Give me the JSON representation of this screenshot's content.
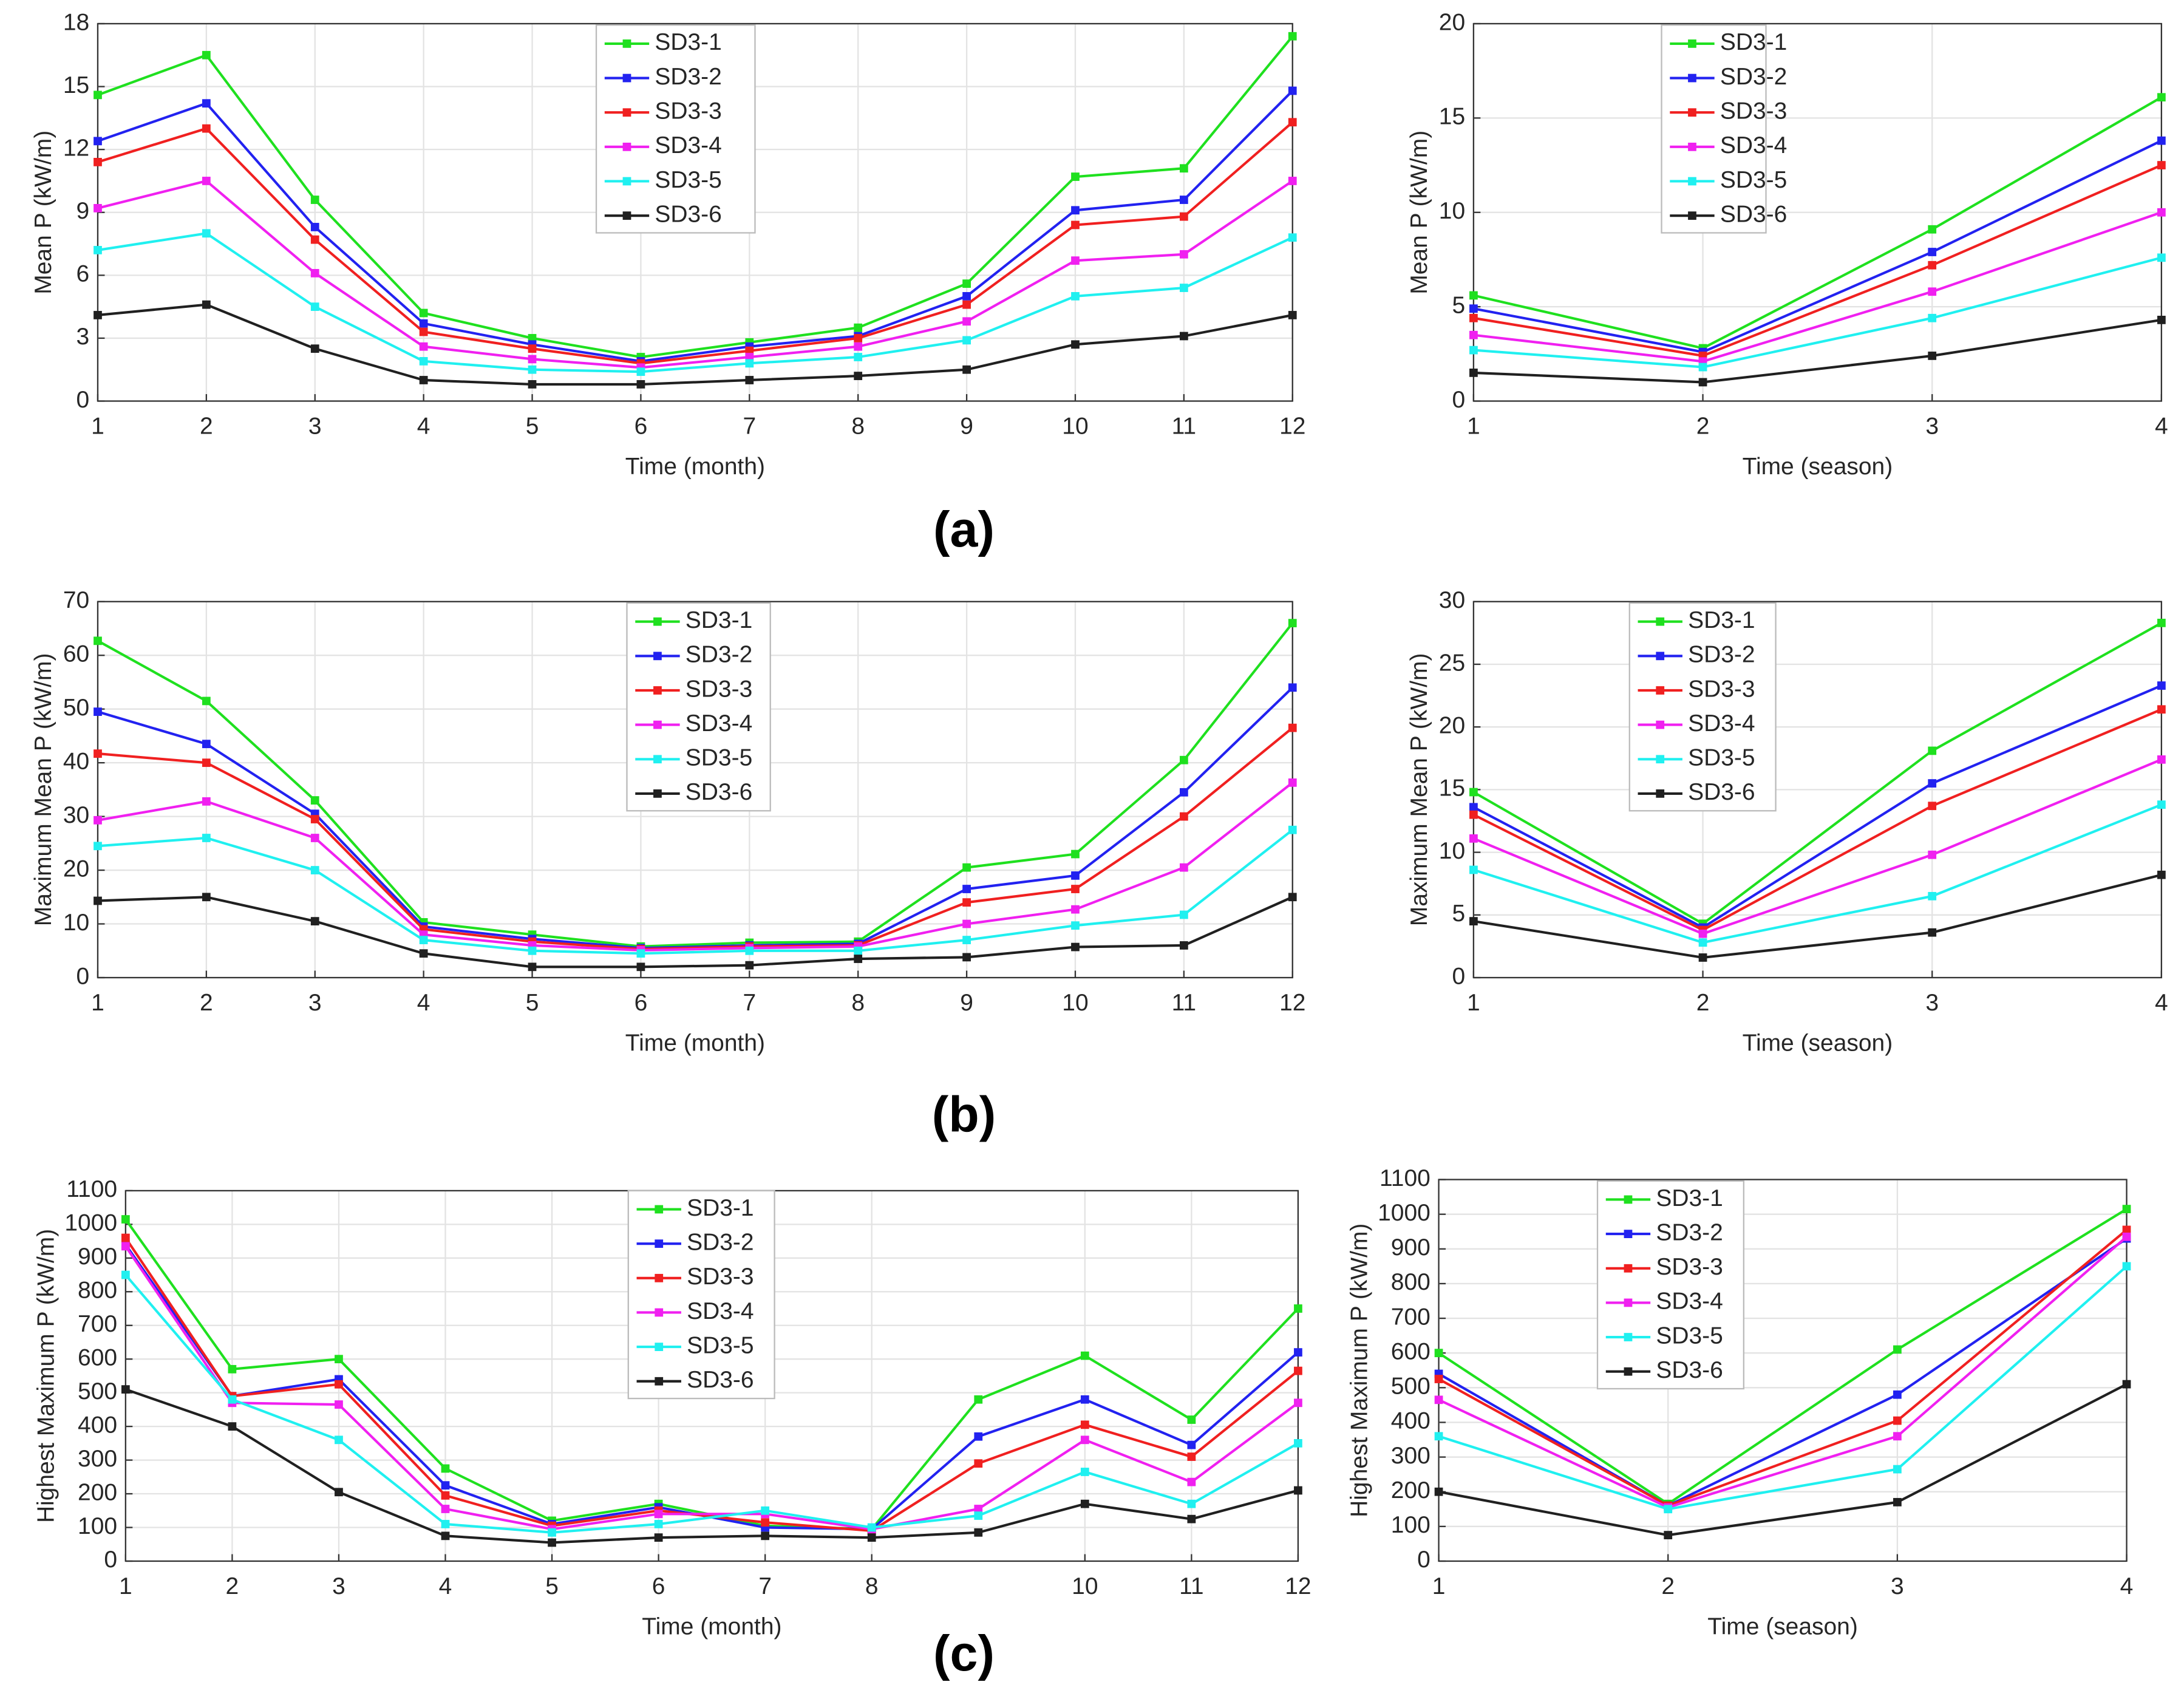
{
  "panel_labels": [
    "(a)",
    "(b)",
    "(c)"
  ],
  "chart_data": [
    {
      "type": "line",
      "xlabel": "Time (month)",
      "ylabel": "Mean P (kW/m)",
      "grid": true,
      "x": [
        1,
        2,
        3,
        4,
        5,
        6,
        7,
        8,
        9,
        10,
        11,
        12
      ],
      "xlim": [
        1,
        12
      ],
      "xticks": [
        1,
        2,
        3,
        4,
        5,
        6,
        7,
        8,
        9,
        10,
        11,
        12
      ],
      "ylim": [
        0,
        18
      ],
      "yticks": [
        0,
        3,
        6,
        9,
        12,
        15,
        18
      ],
      "series": [
        {
          "name": "SD3-1",
          "color": "#1fe01f",
          "values": [
            14.6,
            16.5,
            9.6,
            4.2,
            3.0,
            2.1,
            2.8,
            3.5,
            5.6,
            10.7,
            11.1,
            17.4
          ]
        },
        {
          "name": "SD3-2",
          "color": "#2222f0",
          "values": [
            12.4,
            14.2,
            8.3,
            3.7,
            2.7,
            1.9,
            2.6,
            3.1,
            5.0,
            9.1,
            9.6,
            14.8
          ]
        },
        {
          "name": "SD3-3",
          "color": "#f02020",
          "values": [
            11.4,
            13.0,
            7.7,
            3.3,
            2.5,
            1.8,
            2.4,
            3.0,
            4.6,
            8.4,
            8.8,
            13.3
          ]
        },
        {
          "name": "SD3-4",
          "color": "#f020f0",
          "values": [
            9.2,
            10.5,
            6.1,
            2.6,
            2.0,
            1.6,
            2.1,
            2.6,
            3.8,
            6.7,
            7.0,
            10.5
          ]
        },
        {
          "name": "SD3-5",
          "color": "#20f0f0",
          "values": [
            7.2,
            8.0,
            4.5,
            1.9,
            1.5,
            1.4,
            1.8,
            2.1,
            2.9,
            5.0,
            5.4,
            7.8
          ]
        },
        {
          "name": "SD3-6",
          "color": "#202020",
          "values": [
            4.1,
            4.6,
            2.5,
            1.0,
            0.8,
            0.8,
            1.0,
            1.2,
            1.5,
            2.7,
            3.1,
            4.1
          ]
        }
      ]
    },
    {
      "type": "line",
      "xlabel": "Time (season)",
      "ylabel": "Mean P (kW/m)",
      "grid": true,
      "x": [
        1,
        2,
        3,
        4
      ],
      "xlim": [
        1,
        4
      ],
      "xticks": [
        1,
        2,
        3,
        4
      ],
      "ylim": [
        0,
        20
      ],
      "yticks": [
        0,
        5,
        10,
        15,
        20
      ],
      "series": [
        {
          "name": "SD3-1",
          "color": "#1fe01f",
          "values": [
            5.6,
            2.8,
            9.1,
            16.1
          ]
        },
        {
          "name": "SD3-2",
          "color": "#2222f0",
          "values": [
            4.9,
            2.6,
            7.9,
            13.8
          ]
        },
        {
          "name": "SD3-3",
          "color": "#f02020",
          "values": [
            4.4,
            2.4,
            7.2,
            12.5
          ]
        },
        {
          "name": "SD3-4",
          "color": "#f020f0",
          "values": [
            3.5,
            2.1,
            5.8,
            10.0
          ]
        },
        {
          "name": "SD3-5",
          "color": "#20f0f0",
          "values": [
            2.7,
            1.8,
            4.4,
            7.6
          ]
        },
        {
          "name": "SD3-6",
          "color": "#202020",
          "values": [
            1.5,
            1.0,
            2.4,
            4.3
          ]
        }
      ]
    },
    {
      "type": "line",
      "xlabel": "Time (month)",
      "ylabel": "Maximum Mean P (kW/m)",
      "grid": true,
      "x": [
        1,
        2,
        3,
        4,
        5,
        6,
        7,
        8,
        9,
        10,
        11,
        12
      ],
      "xlim": [
        1,
        12
      ],
      "xticks": [
        1,
        2,
        3,
        4,
        5,
        6,
        7,
        8,
        9,
        10,
        11,
        12
      ],
      "ylim": [
        0,
        70
      ],
      "yticks": [
        0,
        10,
        20,
        30,
        40,
        50,
        60,
        70
      ],
      "series": [
        {
          "name": "SD3-1",
          "color": "#1fe01f",
          "values": [
            62.7,
            51.5,
            33,
            10.3,
            8,
            5.8,
            6.5,
            6.7,
            20.5,
            23,
            40.5,
            66
          ]
        },
        {
          "name": "SD3-2",
          "color": "#2222f0",
          "values": [
            49.5,
            43.5,
            30.5,
            9.5,
            7.2,
            5.5,
            6,
            6.3,
            16.5,
            19,
            34.5,
            54
          ]
        },
        {
          "name": "SD3-3",
          "color": "#f02020",
          "values": [
            41.7,
            40,
            29.5,
            9,
            6.7,
            5.3,
            5.8,
            6,
            14,
            16.5,
            30,
            46.5
          ]
        },
        {
          "name": "SD3-4",
          "color": "#f020f0",
          "values": [
            29.3,
            32.8,
            26,
            8,
            6,
            5.1,
            5.5,
            5.8,
            10,
            12.7,
            20.5,
            36.3
          ]
        },
        {
          "name": "SD3-5",
          "color": "#20f0f0",
          "values": [
            24.5,
            26,
            20,
            7,
            5,
            4.5,
            5,
            5,
            7,
            9.7,
            11.7,
            27.5
          ]
        },
        {
          "name": "SD3-6",
          "color": "#202020",
          "values": [
            14.3,
            15,
            10.5,
            4.5,
            2,
            2,
            2.3,
            3.5,
            3.8,
            5.7,
            6,
            15
          ]
        }
      ]
    },
    {
      "type": "line",
      "xlabel": "Time (season)",
      "ylabel": "Maximum Mean P (kW/m)",
      "grid": true,
      "x": [
        1,
        2,
        3,
        4
      ],
      "xlim": [
        1,
        4
      ],
      "xticks": [
        1,
        2,
        3,
        4
      ],
      "ylim": [
        0,
        30
      ],
      "yticks": [
        0,
        5,
        10,
        15,
        20,
        25,
        30
      ],
      "series": [
        {
          "name": "SD3-1",
          "color": "#1fe01f",
          "values": [
            14.8,
            4.3,
            18.1,
            28.3
          ]
        },
        {
          "name": "SD3-2",
          "color": "#2222f0",
          "values": [
            13.6,
            4.0,
            15.5,
            23.3
          ]
        },
        {
          "name": "SD3-3",
          "color": "#f02020",
          "values": [
            13.0,
            3.8,
            13.7,
            21.4
          ]
        },
        {
          "name": "SD3-4",
          "color": "#f020f0",
          "values": [
            11.1,
            3.5,
            9.8,
            17.4
          ]
        },
        {
          "name": "SD3-5",
          "color": "#20f0f0",
          "values": [
            8.6,
            2.8,
            6.5,
            13.8
          ]
        },
        {
          "name": "SD3-6",
          "color": "#202020",
          "values": [
            4.5,
            1.6,
            3.6,
            8.2
          ]
        }
      ]
    },
    {
      "type": "line",
      "xlabel": "Time (month)",
      "ylabel": "Highest Maximum P (kW/m)",
      "grid": true,
      "x": [
        1,
        2,
        3,
        4,
        5,
        6,
        7,
        8,
        9,
        10,
        11,
        12
      ],
      "xlim": [
        1,
        12
      ],
      "xticks": [
        1,
        2,
        3,
        4,
        5,
        6,
        7,
        8,
        10,
        11,
        12
      ],
      "ylim": [
        0,
        1100
      ],
      "yticks": [
        0,
        100,
        200,
        300,
        400,
        500,
        600,
        700,
        800,
        900,
        1000,
        1100
      ],
      "series": [
        {
          "name": "SD3-1",
          "color": "#1fe01f",
          "values": [
            1015,
            570,
            600,
            275,
            120,
            170,
            105,
            95,
            480,
            610,
            420,
            750
          ]
        },
        {
          "name": "SD3-2",
          "color": "#2222f0",
          "values": [
            940,
            490,
            540,
            225,
            110,
            160,
            100,
            95,
            370,
            480,
            345,
            620
          ]
        },
        {
          "name": "SD3-3",
          "color": "#f02020",
          "values": [
            960,
            490,
            525,
            195,
            105,
            150,
            115,
            90,
            290,
            405,
            310,
            565
          ]
        },
        {
          "name": "SD3-4",
          "color": "#f020f0",
          "values": [
            935,
            470,
            465,
            155,
            95,
            140,
            140,
            95,
            155,
            360,
            235,
            470
          ]
        },
        {
          "name": "SD3-5",
          "color": "#20f0f0",
          "values": [
            850,
            480,
            360,
            110,
            85,
            110,
            150,
            100,
            135,
            265,
            170,
            350
          ]
        },
        {
          "name": "SD3-6",
          "color": "#202020",
          "values": [
            510,
            400,
            205,
            75,
            55,
            70,
            75,
            70,
            85,
            170,
            125,
            210
          ]
        }
      ]
    },
    {
      "type": "line",
      "xlabel": "Time (season)",
      "ylabel": "Highest Maximum P (kW/m)",
      "grid": true,
      "x": [
        1,
        2,
        3,
        4
      ],
      "xlim": [
        1,
        4
      ],
      "xticks": [
        1,
        2,
        3,
        4
      ],
      "ylim": [
        0,
        1100
      ],
      "yticks": [
        0,
        100,
        200,
        300,
        400,
        500,
        600,
        700,
        800,
        900,
        1000,
        1100
      ],
      "series": [
        {
          "name": "SD3-1",
          "color": "#1fe01f",
          "values": [
            600,
            165,
            610,
            1015
          ]
        },
        {
          "name": "SD3-2",
          "color": "#2222f0",
          "values": [
            540,
            160,
            480,
            930
          ]
        },
        {
          "name": "SD3-3",
          "color": "#f02020",
          "values": [
            525,
            160,
            405,
            955
          ]
        },
        {
          "name": "SD3-4",
          "color": "#f020f0",
          "values": [
            465,
            155,
            360,
            935
          ]
        },
        {
          "name": "SD3-5",
          "color": "#20f0f0",
          "values": [
            360,
            150,
            265,
            850
          ]
        },
        {
          "name": "SD3-6",
          "color": "#202020",
          "values": [
            200,
            75,
            170,
            510
          ]
        }
      ]
    }
  ]
}
